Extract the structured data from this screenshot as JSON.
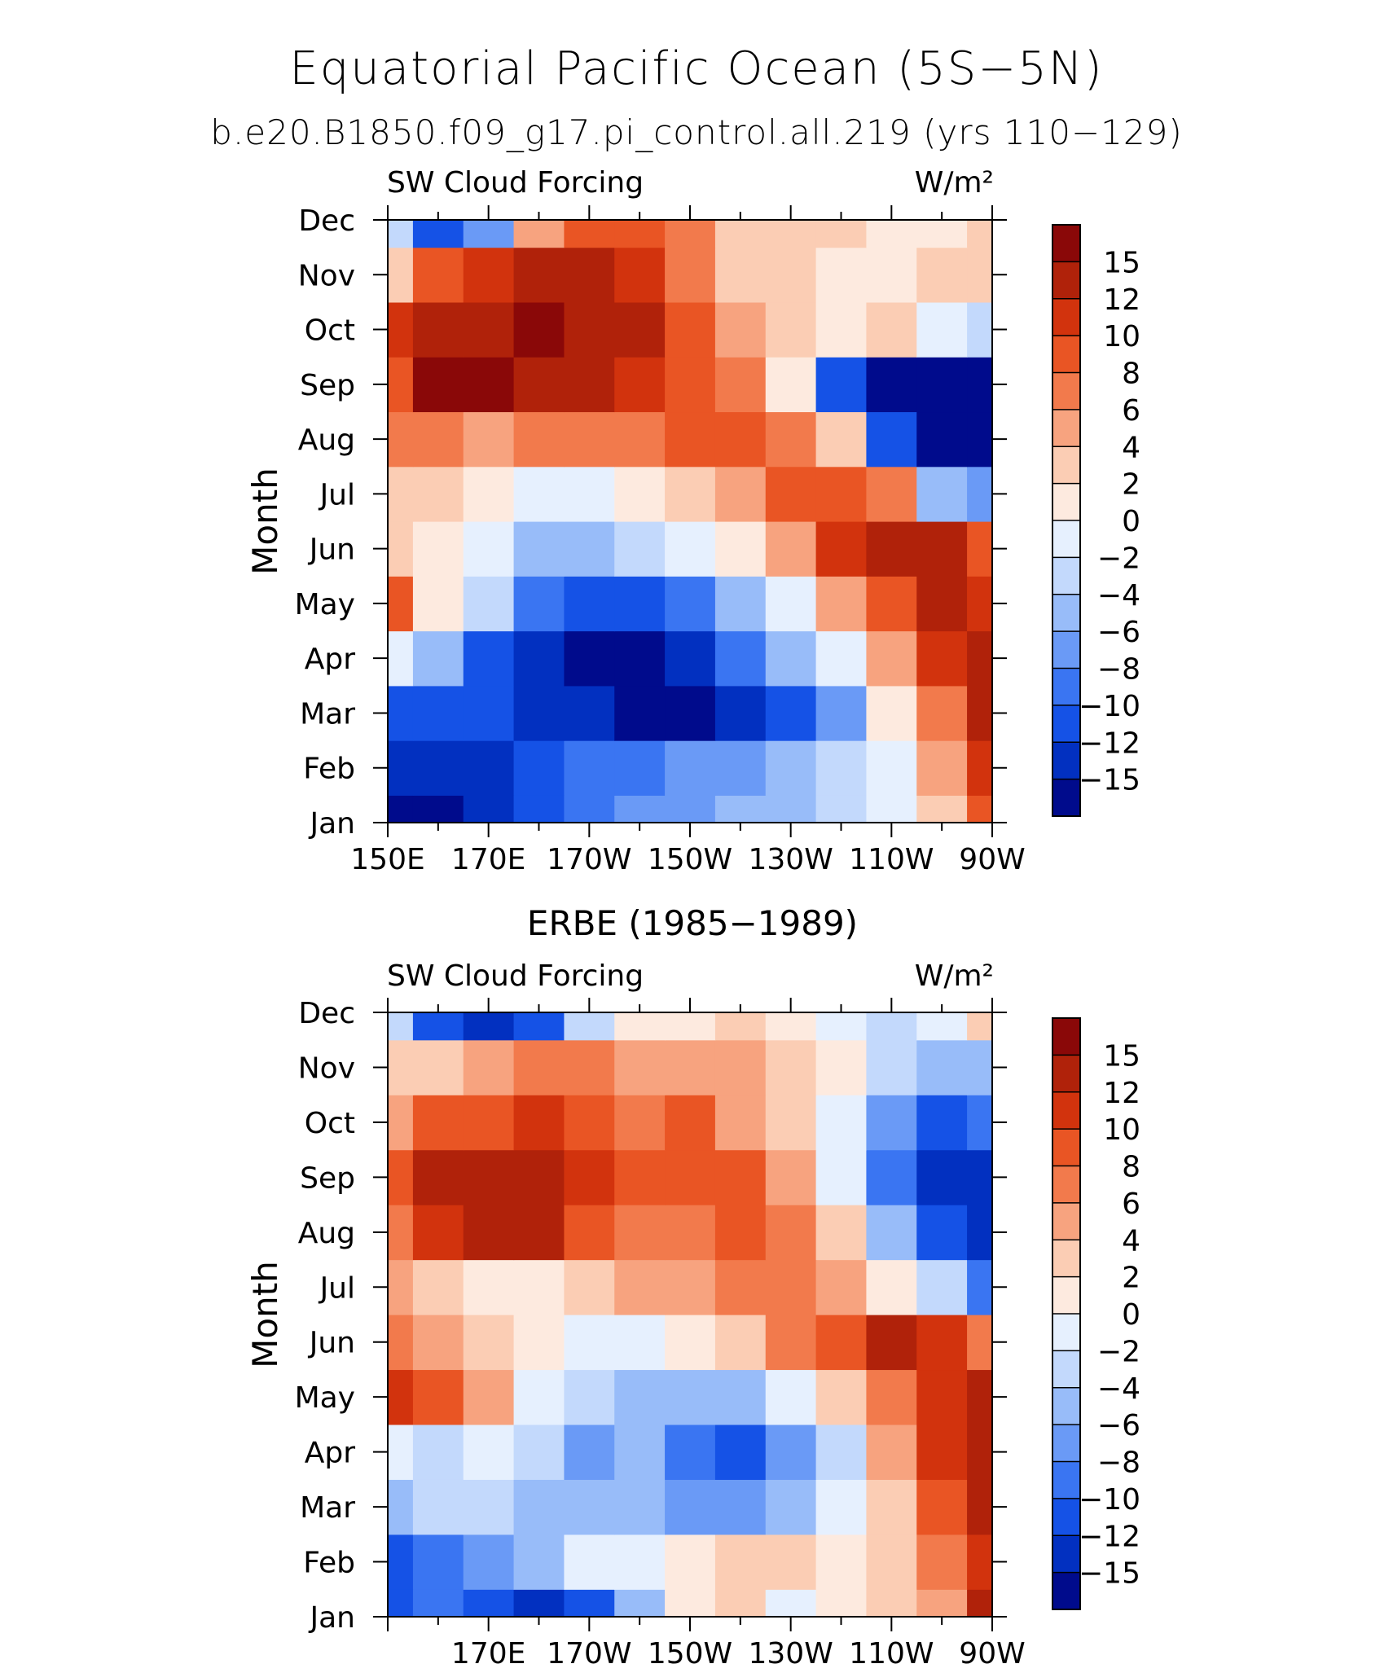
{
  "header": {
    "title": "Equatorial Pacific Ocean (5S−5N)",
    "subtitle": "b.e20.B1850.f09_g17.pi_control.all.219 (yrs 110−129)"
  },
  "palette": [
    "#000b8c",
    "#0230c0",
    "#1552e6",
    "#3a75f2",
    "#6a9af6",
    "#98bcf9",
    "#c3d9fc",
    "#e6f0fe",
    "#fdeadf",
    "#fbcdb4",
    "#f7a37f",
    "#f27a4c",
    "#e95524",
    "#d2330d",
    "#b0220a",
    "#8a0808"
  ],
  "chart_data": [
    {
      "type": "heatmap",
      "title": "",
      "panel_title": "",
      "left_label": "SW Cloud Forcing",
      "right_label": "W/m²",
      "ylabel": "Month",
      "xlabel": "",
      "x_ticks": [
        "150E",
        "170E",
        "170W",
        "150W",
        "130W",
        "110W",
        "90W"
      ],
      "y_ticks": [
        "Jan",
        "Feb",
        "Mar",
        "Apr",
        "May",
        "Jun",
        "Jul",
        "Aug",
        "Sep",
        "Oct",
        "Nov",
        "Dec"
      ],
      "colorbar_labels": [
        "15",
        "12",
        "10",
        "8",
        "6",
        "4",
        "2",
        "0",
        "−2",
        "−4",
        "−6",
        "−8",
        "−10",
        "−12",
        "−15"
      ],
      "x": [
        "150E",
        "160E",
        "170E",
        "180",
        "170W",
        "160W",
        "150W",
        "140W",
        "130W",
        "120W",
        "110W",
        "100W",
        "90W"
      ],
      "y": [
        "Jan",
        "Feb",
        "Mar",
        "Apr",
        "May",
        "Jun",
        "Jul",
        "Aug",
        "Sep",
        "Oct",
        "Nov",
        "Dec"
      ],
      "z": [
        [
          -16,
          -16,
          -14,
          -12,
          -10,
          -8,
          -8,
          -6,
          -6,
          -4,
          -2,
          2,
          8
        ],
        [
          -14,
          -14,
          -14,
          -12,
          -10,
          -10,
          -8,
          -8,
          -6,
          -4,
          -1,
          4,
          11
        ],
        [
          -12,
          -12,
          -12,
          -14,
          -14,
          -16,
          -16,
          -14,
          -12,
          -8,
          0,
          7,
          13
        ],
        [
          -2,
          -6,
          -12,
          -14,
          -16,
          -16,
          -14,
          -10,
          -6,
          -2,
          5,
          10,
          13
        ],
        [
          8,
          0,
          -4,
          -10,
          -12,
          -12,
          -10,
          -6,
          -2,
          4,
          9,
          14,
          11
        ],
        [
          3,
          1,
          -2,
          -6,
          -6,
          -4,
          -2,
          1,
          4,
          10,
          14,
          12,
          8
        ],
        [
          3,
          3,
          1,
          -2,
          -2,
          0,
          3,
          5,
          8,
          9,
          7,
          -6,
          -8
        ],
        [
          7,
          6,
          5,
          6,
          7,
          7,
          8,
          9,
          6,
          2,
          -12,
          -16,
          -16
        ],
        [
          9,
          15,
          15,
          14,
          14,
          10,
          8,
          6,
          0,
          -12,
          -16,
          -16,
          -16
        ],
        [
          10,
          13,
          14,
          16,
          14,
          12,
          8,
          4,
          2,
          1,
          2,
          -2,
          -4
        ],
        [
          2,
          8,
          10,
          12,
          12,
          10,
          6,
          2,
          2,
          1,
          1,
          2,
          3
        ],
        [
          -4,
          -12,
          -8,
          4,
          8,
          9,
          6,
          3,
          2,
          2,
          1,
          1,
          2
        ]
      ]
    },
    {
      "type": "heatmap",
      "title": "ERBE (1985−1989)",
      "panel_title": "ERBE (1985−1989)",
      "left_label": "SW Cloud Forcing",
      "right_label": "W/m²",
      "ylabel": "Month",
      "xlabel": "",
      "x_ticks": [
        "",
        "170E",
        "170W",
        "150W",
        "130W",
        "110W",
        "90W"
      ],
      "y_ticks": [
        "Jan",
        "Feb",
        "Mar",
        "Apr",
        "May",
        "Jun",
        "Jul",
        "Aug",
        "Sep",
        "Oct",
        "Nov",
        "Dec"
      ],
      "colorbar_labels": [
        "15",
        "12",
        "10",
        "8",
        "6",
        "4",
        "2",
        "0",
        "−2",
        "−4",
        "−6",
        "−8",
        "−10",
        "−12",
        "−15"
      ],
      "x": [
        "150E",
        "160E",
        "170E",
        "180",
        "170W",
        "160W",
        "150W",
        "140W",
        "130W",
        "120W",
        "110W",
        "100W",
        "90W"
      ],
      "y": [
        "Jan",
        "Feb",
        "Mar",
        "Apr",
        "May",
        "Jun",
        "Jul",
        "Aug",
        "Sep",
        "Oct",
        "Nov",
        "Dec"
      ],
      "z": [
        [
          -12,
          -10,
          -12,
          -14,
          -12,
          -6,
          0,
          2,
          -2,
          0,
          2,
          4,
          12
        ],
        [
          -12,
          -10,
          -8,
          -6,
          -2,
          -2,
          0,
          2,
          2,
          1,
          3,
          6,
          10
        ],
        [
          -6,
          -4,
          -4,
          -6,
          -6,
          -6,
          -8,
          -8,
          -6,
          -2,
          2,
          8,
          14
        ],
        [
          -2,
          -4,
          -2,
          -4,
          -8,
          -6,
          -10,
          -12,
          -8,
          -4,
          4,
          10,
          12
        ],
        [
          10,
          8,
          4,
          -2,
          -4,
          -6,
          -6,
          -6,
          -2,
          2,
          6,
          10,
          12
        ],
        [
          6,
          4,
          2,
          0,
          -2,
          -1,
          1,
          3,
          6,
          9,
          12,
          11,
          6
        ],
        [
          4,
          2,
          1,
          1,
          2,
          4,
          5,
          6,
          6,
          4,
          0,
          -4,
          -10
        ],
        [
          6,
          11,
          12,
          12,
          8,
          6,
          6,
          8,
          6,
          2,
          -6,
          -12,
          -14
        ],
        [
          8,
          12,
          12,
          13,
          10,
          8,
          8,
          8,
          4,
          -2,
          -10,
          -14,
          -14
        ],
        [
          4,
          8,
          8,
          10,
          8,
          6,
          8,
          4,
          2,
          -2,
          -8,
          -12,
          -10
        ],
        [
          2,
          3,
          4,
          6,
          6,
          4,
          4,
          4,
          3,
          0,
          -4,
          -6,
          -6
        ],
        [
          -4,
          -12,
          -14,
          -12,
          -4,
          0,
          0,
          2,
          0,
          -2,
          -4,
          -2,
          2
        ]
      ]
    }
  ]
}
